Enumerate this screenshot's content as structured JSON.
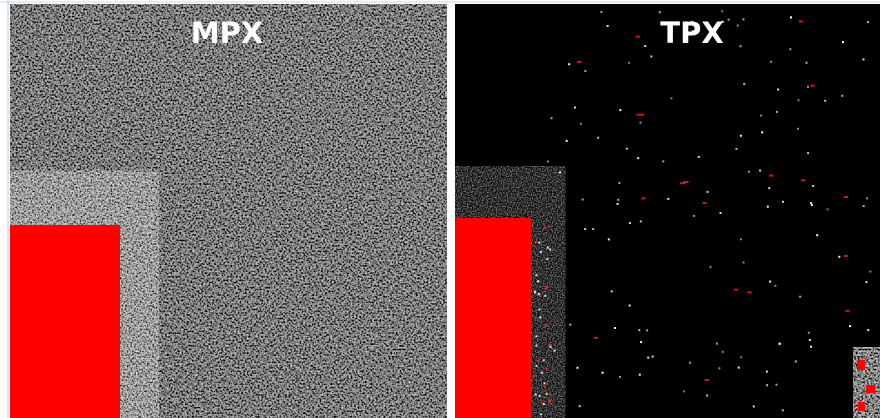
{
  "panels": [
    {
      "title": "MPX"
    },
    {
      "title": "TPX"
    }
  ]
}
